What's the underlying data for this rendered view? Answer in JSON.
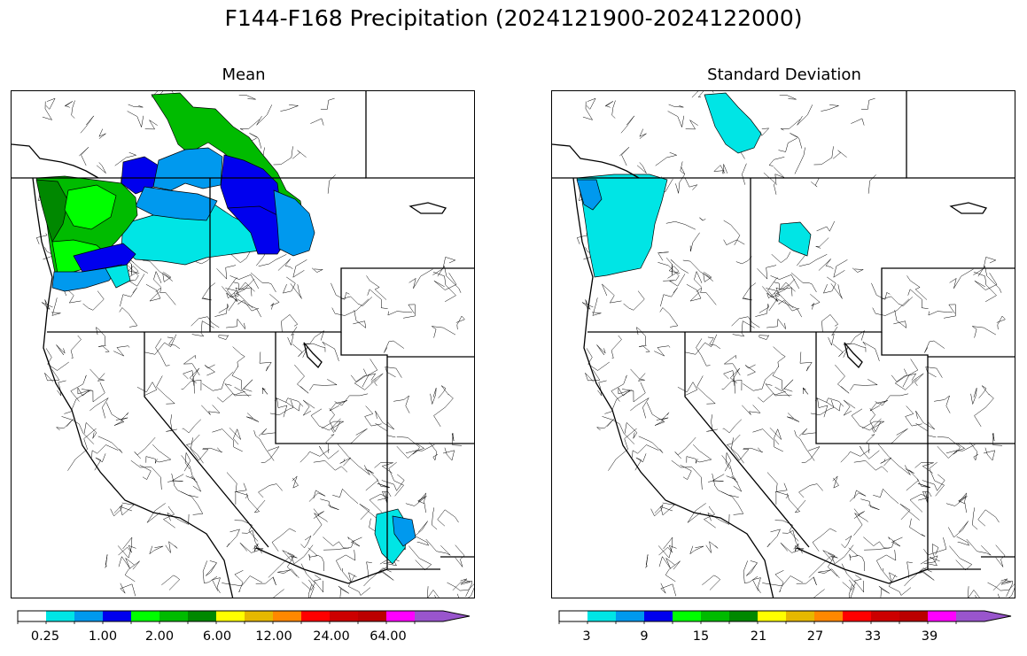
{
  "title": "F144-F168 Precipitation (2024121900-2024122000)",
  "panels": [
    {
      "id": "mean",
      "title": "Mean",
      "colorbar": {
        "colors": [
          "#ffffff",
          "#00e5e5",
          "#0099ee",
          "#0000ee",
          "#00ff00",
          "#00bb00",
          "#008800",
          "#ffff00",
          "#e6b800",
          "#ff8800",
          "#ff0000",
          "#cc0000",
          "#bb0000",
          "#ff00ff",
          "#9955cc"
        ],
        "tick_labels": [
          "0.25",
          "1.00",
          "2.00",
          "6.00",
          "12.00",
          "24.00",
          "64.00"
        ],
        "extend": "max"
      }
    },
    {
      "id": "std",
      "title": "Standard Deviation",
      "colorbar": {
        "colors": [
          "#ffffff",
          "#00e5e5",
          "#0099ee",
          "#0000ee",
          "#00ff00",
          "#00bb00",
          "#008800",
          "#ffff00",
          "#e6b800",
          "#ff8800",
          "#ff0000",
          "#cc0000",
          "#bb0000",
          "#ff00ff",
          "#9955cc"
        ],
        "tick_labels": [
          "3",
          "9",
          "15",
          "21",
          "27",
          "33",
          "39"
        ],
        "extend": "max"
      }
    }
  ]
}
